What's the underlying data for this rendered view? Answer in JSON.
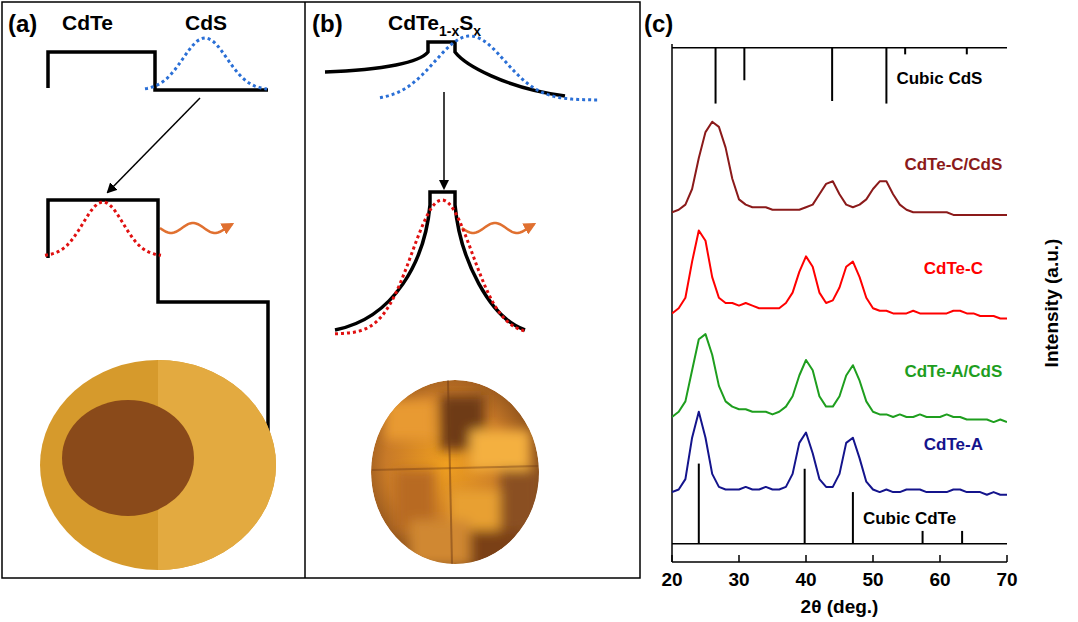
{
  "figure": {
    "panel_labels": [
      "(a)",
      "(b)",
      "(c)"
    ]
  },
  "diagram_a": {
    "labels": [
      "CdTe",
      "CdS"
    ]
  },
  "diagram_b": {
    "formula": [
      {
        "text": "CdTe"
      },
      {
        "text": "1-x",
        "sub": true
      },
      {
        "text": "S"
      },
      {
        "text": "x",
        "sub": true
      }
    ]
  },
  "chart_data": {
    "type": "line",
    "x_label": "2θ (deg.)",
    "y_label": "Intensity (a.u.)",
    "xlim": [
      20,
      70
    ],
    "xticks": [
      20,
      30,
      40,
      50,
      60,
      70
    ],
    "ylim": [
      0,
      100
    ],
    "tick_labels": "x",
    "series": [
      {
        "name": "Cubic CdS",
        "type": "stick",
        "color": "#000000",
        "baseline": 99.3,
        "x": [
          26.5,
          30.8,
          43.9,
          52.0,
          54.8,
          64.0
        ],
        "values": [
          88.5,
          93,
          89,
          88.5,
          98,
          98
        ]
      },
      {
        "name": "CdTe-C/CdS",
        "type": "line",
        "color": "#8b1a1a",
        "x": [
          20,
          21,
          22,
          23,
          24,
          25,
          26,
          27,
          28,
          29,
          30,
          31,
          32,
          33,
          34,
          35,
          36,
          37,
          38,
          39,
          40,
          41,
          42,
          43,
          44,
          45,
          46,
          47,
          48,
          49,
          50,
          51,
          52,
          53,
          54,
          55,
          56,
          57,
          58,
          59,
          60,
          61,
          62,
          63,
          64,
          65,
          66,
          67,
          68,
          69,
          70
        ],
        "values": [
          67.5,
          68,
          69,
          72,
          78,
          83,
          85,
          84,
          80,
          74,
          70,
          69,
          68.5,
          68.5,
          68.5,
          68,
          68,
          68,
          68,
          68,
          68.5,
          69,
          71,
          73,
          73.5,
          71,
          69,
          68.5,
          69,
          70,
          72,
          73.5,
          73.5,
          71,
          69,
          68,
          67.5,
          67.5,
          67.5,
          67.5,
          67.5,
          67.5,
          67,
          67,
          67,
          67,
          67,
          67,
          67,
          67,
          67
        ]
      },
      {
        "name": "CdTe-C",
        "type": "line",
        "color": "#ff0000",
        "x": [
          20,
          21,
          22,
          23,
          24,
          25,
          26,
          27,
          28,
          29,
          30,
          31,
          32,
          33,
          34,
          35,
          36,
          37,
          38,
          39,
          40,
          41,
          42,
          43,
          44,
          45,
          46,
          47,
          48,
          49,
          50,
          51,
          52,
          53,
          54,
          55,
          56,
          57,
          58,
          59,
          60,
          61,
          62,
          63,
          64,
          65,
          66,
          67,
          68,
          69,
          70
        ],
        "values": [
          48,
          49,
          51,
          58,
          64,
          62,
          55,
          51,
          50,
          50,
          49.5,
          50,
          49.5,
          49,
          49,
          49,
          49,
          50,
          52,
          56,
          59,
          57,
          52,
          50,
          50.5,
          53,
          57,
          58,
          55,
          51,
          49,
          48.5,
          48.5,
          48,
          48,
          48,
          48.5,
          48,
          48,
          48,
          48,
          48,
          48.5,
          48.5,
          48,
          48,
          47.5,
          47.5,
          47.5,
          47,
          47
        ]
      },
      {
        "name": "CdTe-A/CdS",
        "type": "line",
        "color": "#1e9e1e",
        "x": [
          20,
          21,
          22,
          23,
          24,
          25,
          26,
          27,
          28,
          29,
          30,
          31,
          32,
          33,
          34,
          35,
          36,
          37,
          38,
          39,
          40,
          41,
          42,
          43,
          44,
          45,
          46,
          47,
          48,
          49,
          50,
          51,
          52,
          53,
          54,
          55,
          56,
          57,
          58,
          59,
          60,
          61,
          62,
          63,
          64,
          65,
          66,
          67,
          68,
          69,
          70
        ],
        "values": [
          28,
          29,
          31,
          37,
          43,
          44,
          40,
          34,
          31,
          30,
          29.5,
          29.5,
          29,
          29,
          29,
          28.5,
          29,
          30,
          32,
          36,
          39,
          37,
          32,
          30,
          30,
          32,
          36,
          38,
          35,
          31,
          29,
          28.5,
          28.5,
          28,
          28.5,
          28,
          28,
          28.5,
          28,
          28,
          28,
          28.5,
          28,
          28,
          27.5,
          27.5,
          27.5,
          27.5,
          27,
          27.5,
          27
        ]
      },
      {
        "name": "CdTe-A",
        "type": "line",
        "color": "#14148c",
        "x": [
          20,
          21,
          22,
          23,
          24,
          25,
          26,
          27,
          28,
          29,
          30,
          31,
          32,
          33,
          34,
          35,
          36,
          37,
          38,
          39,
          40,
          41,
          42,
          43,
          44,
          45,
          46,
          47,
          48,
          49,
          50,
          51,
          52,
          53,
          54,
          55,
          56,
          57,
          58,
          59,
          60,
          61,
          62,
          63,
          64,
          65,
          66,
          67,
          68,
          69,
          70
        ],
        "values": [
          13.5,
          14,
          16,
          24,
          29,
          24,
          17,
          14.5,
          14,
          14,
          14,
          14.5,
          14,
          14,
          14.5,
          14,
          14,
          14.5,
          17,
          23,
          25,
          21,
          16,
          14.5,
          14.5,
          17,
          23,
          24,
          20,
          15.5,
          14,
          13.5,
          14,
          13.5,
          13.5,
          14,
          14,
          14,
          13.5,
          13.5,
          13.5,
          13.5,
          14,
          14,
          13.5,
          13.5,
          13.5,
          13,
          13.5,
          13,
          13
        ]
      },
      {
        "name": "Cubic CdTe",
        "type": "stick",
        "color": "#000000",
        "baseline": 3.5,
        "x": [
          24.0,
          39.8,
          47.0,
          57.4,
          63.3
        ],
        "values": [
          19,
          18,
          13.5,
          6,
          6
        ]
      }
    ]
  }
}
